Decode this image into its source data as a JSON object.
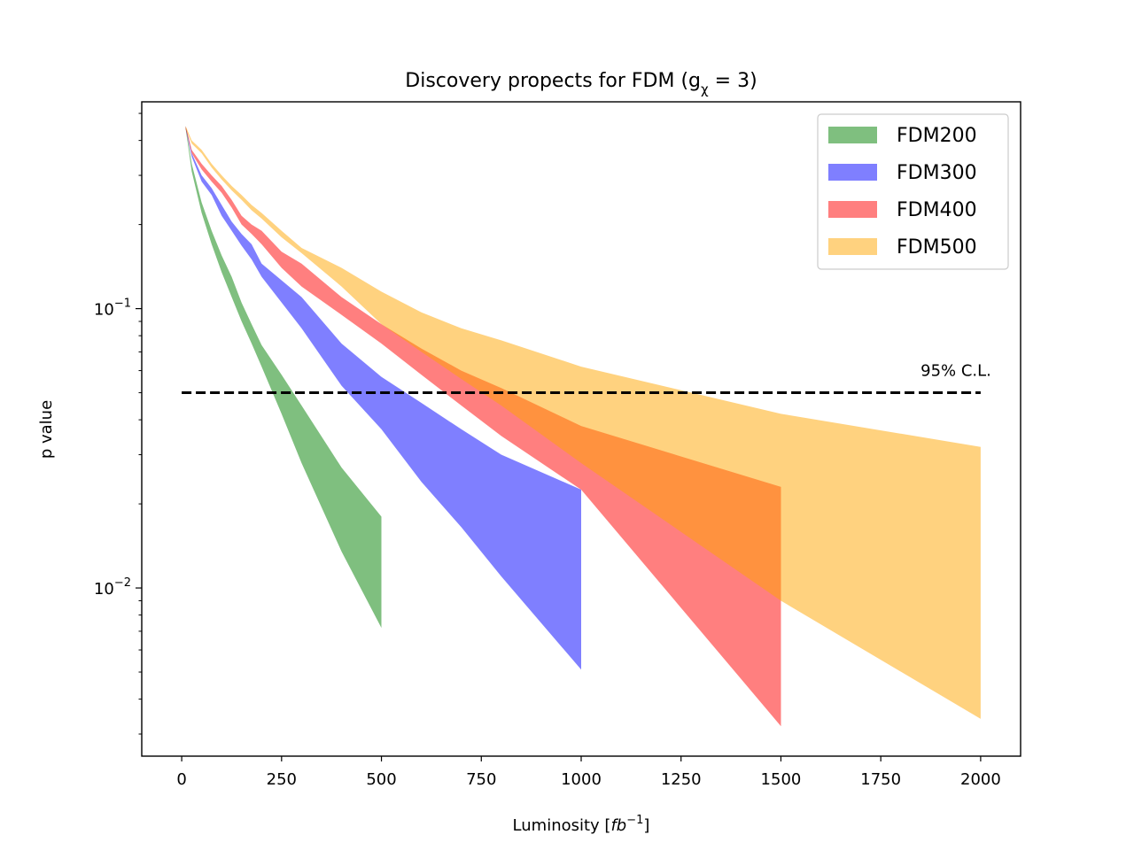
{
  "chart_data": {
    "type": "area",
    "title": "Discovery propects for FDM (g",
    "title_subscript": "χ",
    "title_tail": " = 3)",
    "xlabel": "Luminosity [",
    "xlabel_unit": "fb",
    "xlabel_exp": "−1",
    "xlabel_close": "]",
    "ylabel": "p value",
    "yscale": "log",
    "xlim": [
      -100,
      2100
    ],
    "ylim": [
      0.0025,
      0.55
    ],
    "xticks": [
      0,
      250,
      500,
      750,
      1000,
      1250,
      1500,
      1750,
      2000
    ],
    "xtick_labels": [
      "0",
      "250",
      "500",
      "750",
      "1000",
      "1250",
      "1500",
      "1750",
      "2000"
    ],
    "yticks_major": [
      {
        "value": 0.1,
        "base": "10",
        "exp": "−1"
      },
      {
        "value": 0.01,
        "base": "10",
        "exp": "−2"
      }
    ],
    "legend_position": "top-right",
    "series": [
      {
        "name": "FDM200",
        "color": "#008000",
        "x": [
          10,
          25,
          50,
          75,
          100,
          125,
          150,
          175,
          200,
          250,
          300,
          400,
          500
        ],
        "upper": [
          0.45,
          0.33,
          0.24,
          0.19,
          0.155,
          0.13,
          0.105,
          0.088,
          0.074,
          0.058,
          0.045,
          0.027,
          0.018
        ],
        "lower": [
          0.44,
          0.31,
          0.22,
          0.17,
          0.135,
          0.11,
          0.09,
          0.075,
          0.062,
          0.042,
          0.028,
          0.0135,
          0.0072
        ]
      },
      {
        "name": "FDM300",
        "color": "#0000ff",
        "x": [
          10,
          25,
          50,
          75,
          100,
          125,
          150,
          175,
          200,
          300,
          400,
          500,
          600,
          700,
          800,
          1000
        ],
        "upper": [
          0.45,
          0.36,
          0.3,
          0.27,
          0.235,
          0.205,
          0.185,
          0.17,
          0.145,
          0.11,
          0.075,
          0.057,
          0.046,
          0.037,
          0.03,
          0.0225
        ],
        "lower": [
          0.44,
          0.35,
          0.285,
          0.255,
          0.215,
          0.19,
          0.168,
          0.15,
          0.13,
          0.085,
          0.053,
          0.037,
          0.024,
          0.0165,
          0.011,
          0.0051
        ]
      },
      {
        "name": "FDM400",
        "color": "#ff0000",
        "x": [
          10,
          25,
          50,
          75,
          100,
          125,
          150,
          175,
          200,
          250,
          300,
          400,
          500,
          600,
          700,
          800,
          1000,
          1500
        ],
        "upper": [
          0.45,
          0.37,
          0.33,
          0.3,
          0.275,
          0.245,
          0.215,
          0.2,
          0.19,
          0.16,
          0.145,
          0.11,
          0.088,
          0.072,
          0.06,
          0.052,
          0.038,
          0.023
        ],
        "lower": [
          0.44,
          0.36,
          0.315,
          0.285,
          0.26,
          0.23,
          0.2,
          0.185,
          0.17,
          0.14,
          0.12,
          0.095,
          0.075,
          0.058,
          0.045,
          0.035,
          0.0225,
          0.0032
        ]
      },
      {
        "name": "FDM500",
        "color": "#ffa500",
        "x": [
          10,
          25,
          50,
          75,
          100,
          125,
          150,
          175,
          200,
          250,
          300,
          400,
          500,
          600,
          700,
          800,
          1000,
          1500,
          2000
        ],
        "upper": [
          0.45,
          0.4,
          0.37,
          0.33,
          0.3,
          0.275,
          0.255,
          0.235,
          0.22,
          0.19,
          0.165,
          0.14,
          0.115,
          0.097,
          0.085,
          0.077,
          0.062,
          0.042,
          0.032
        ],
        "lower": [
          0.44,
          0.39,
          0.36,
          0.32,
          0.29,
          0.265,
          0.245,
          0.225,
          0.21,
          0.18,
          0.158,
          0.12,
          0.088,
          0.07,
          0.056,
          0.045,
          0.028,
          0.009,
          0.0034
        ]
      }
    ],
    "reference_line": {
      "y": 0.05,
      "x_start": 0,
      "x_end": 2000,
      "label": "95% C.L."
    }
  }
}
